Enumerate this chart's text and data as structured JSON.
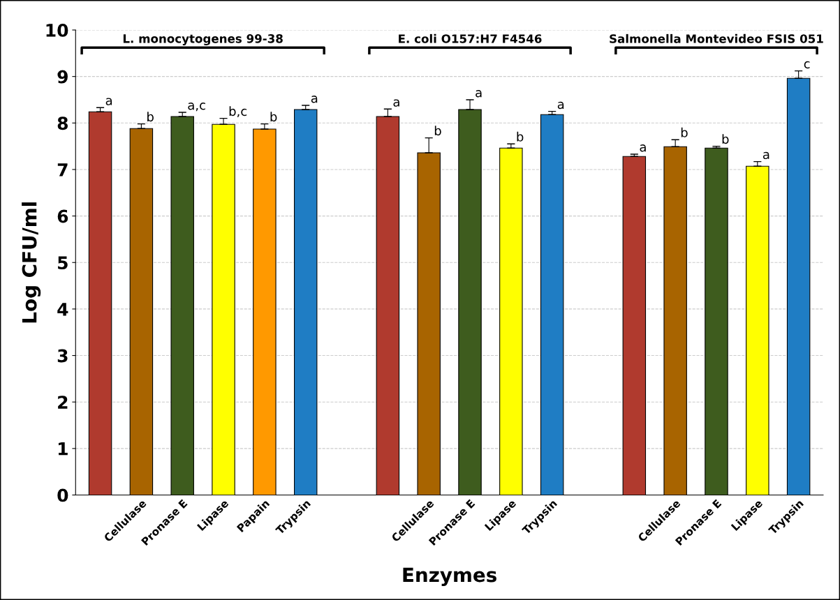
{
  "chart_data": {
    "type": "bar",
    "xlabel": "Enzymes",
    "ylabel": "Log CFU/ml",
    "categories": [
      null,
      "Cellulase",
      "Pronase E",
      "Lipase",
      "Papain",
      "Trypsin",
      null,
      null,
      "Cellulase",
      "Pronase E",
      "Lipase",
      "Trypsin",
      null,
      null,
      "Cellulase",
      "Pronase E",
      "Lipase",
      "Trypsin"
    ],
    "values": [
      8.24,
      7.88,
      8.14,
      7.97,
      7.87,
      8.29,
      null,
      8.14,
      7.36,
      8.29,
      7.46,
      8.18,
      null,
      7.28,
      7.49,
      7.46,
      7.07,
      8.96
    ],
    "colors": [
      "#b03a2e",
      "#a86400",
      "#3e5c1e",
      "#ffff00",
      "#ff9900",
      "#1f7dc4",
      null,
      "#b03a2e",
      "#a86400",
      "#3e5c1e",
      "#ffff00",
      "#1f7dc4",
      null,
      "#b03a2e",
      "#a86400",
      "#3e5c1e",
      "#ffff00",
      "#1f7dc4"
    ],
    "errors": [
      [
        8.24,
        8.33
      ],
      [
        7.88,
        7.98
      ],
      [
        8.14,
        8.23
      ],
      [
        7.97,
        8.1
      ],
      [
        7.87,
        7.98
      ],
      [
        8.29,
        8.38
      ],
      null,
      [
        8.14,
        8.3
      ],
      [
        7.36,
        7.68
      ],
      [
        8.29,
        8.5
      ],
      [
        7.46,
        7.55
      ],
      [
        8.18,
        8.25
      ],
      null,
      [
        7.28,
        7.33
      ],
      [
        7.49,
        7.64
      ],
      [
        7.46,
        7.5
      ],
      [
        7.07,
        7.17
      ],
      [
        8.96,
        9.12
      ]
    ],
    "value_labels": [
      "a",
      "b",
      "a,c",
      "b,c",
      "b",
      "a",
      null,
      "a",
      "b",
      "a",
      "b",
      "a",
      null,
      "a",
      "b",
      "b",
      "a",
      "c"
    ],
    "annotations": [
      "L. monocytogenes 99-38",
      "E. coli O157:H7 F4546",
      "Salmonella Montevideo FSIS 051"
    ],
    "ylim": [
      0,
      10
    ],
    "yticks": [
      0,
      1,
      2,
      3,
      4,
      5,
      6,
      7,
      8,
      9,
      10
    ],
    "grid": "y"
  }
}
